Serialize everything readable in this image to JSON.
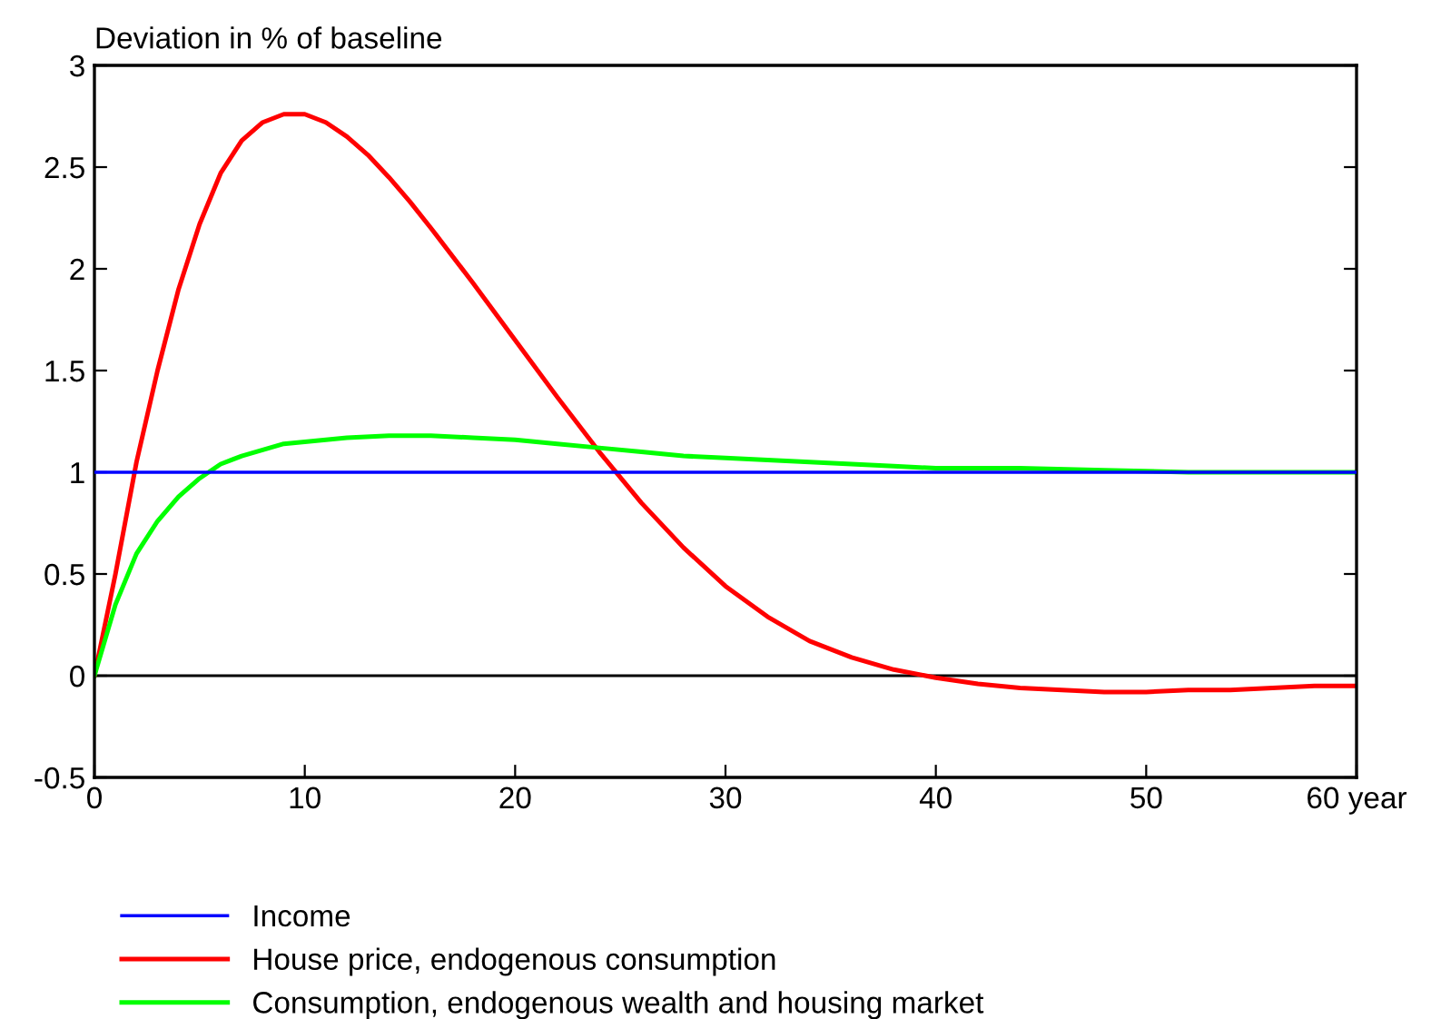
{
  "chart_data": {
    "type": "line",
    "ylabel": "Deviation in % of baseline",
    "xlim": [
      0,
      60
    ],
    "xticks": [
      0,
      10,
      20,
      30,
      40,
      50,
      {
        "value": 60,
        "label": "60 year"
      }
    ],
    "ylim": [
      -0.5,
      3
    ],
    "yticks": [
      -0.5,
      0,
      0.5,
      1,
      1.5,
      2,
      2.5,
      3
    ],
    "grid": false,
    "legend": "bottom",
    "marker": "none",
    "line_style": "solid",
    "ref_lines": [
      {
        "axis": "y",
        "value": 0,
        "color": "#000000"
      }
    ],
    "series": [
      {
        "name": "Income",
        "color": "#0000ff",
        "x": [
          0,
          60
        ],
        "values": [
          1,
          1
        ]
      },
      {
        "name": "House price, endogenous consumption",
        "color": "#ff0000",
        "x": [
          0,
          1,
          2,
          3,
          4,
          5,
          6,
          7,
          8,
          9,
          10,
          11,
          12,
          13,
          14,
          15,
          16,
          18,
          20,
          22,
          24,
          26,
          28,
          30,
          32,
          34,
          36,
          38,
          40,
          42,
          44,
          46,
          48,
          50,
          52,
          54,
          56,
          58,
          60
        ],
        "values": [
          0,
          0.5,
          1.05,
          1.5,
          1.9,
          2.22,
          2.47,
          2.63,
          2.72,
          2.76,
          2.76,
          2.72,
          2.65,
          2.56,
          2.45,
          2.33,
          2.2,
          1.93,
          1.65,
          1.37,
          1.1,
          0.85,
          0.63,
          0.44,
          0.29,
          0.17,
          0.09,
          0.03,
          -0.01,
          -0.04,
          -0.06,
          -0.07,
          -0.08,
          -0.08,
          -0.07,
          -0.07,
          -0.06,
          -0.05,
          -0.05
        ]
      },
      {
        "name": "Consumption, endogenous wealth and housing market",
        "color": "#00ff00",
        "x": [
          0,
          1,
          2,
          3,
          4,
          5,
          6,
          7,
          8,
          9,
          10,
          12,
          14,
          16,
          18,
          20,
          22,
          24,
          26,
          28,
          30,
          32,
          34,
          36,
          38,
          40,
          44,
          48,
          52,
          56,
          60
        ],
        "values": [
          0,
          0.35,
          0.6,
          0.76,
          0.88,
          0.97,
          1.04,
          1.08,
          1.11,
          1.14,
          1.15,
          1.17,
          1.18,
          1.18,
          1.17,
          1.16,
          1.14,
          1.12,
          1.1,
          1.08,
          1.07,
          1.06,
          1.05,
          1.04,
          1.03,
          1.02,
          1.02,
          1.01,
          1.0,
          1.0,
          1.0
        ]
      }
    ]
  }
}
